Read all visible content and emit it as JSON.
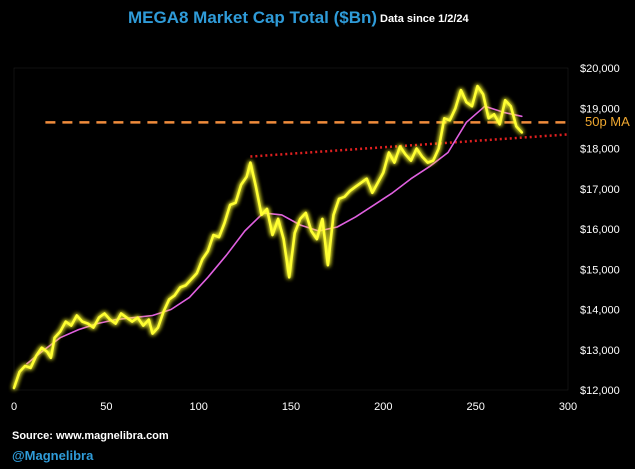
{
  "header": {
    "title": "MEGA8 Market Cap Total ($Bn)",
    "subtitle": "Data since 1/2/24"
  },
  "footer": {
    "source": "Source: www.magnelibra.com",
    "handle": "@Magnelibra"
  },
  "chart_data": {
    "type": "line",
    "title": "MEGA8 Market Cap Total ($Bn)",
    "subtitle": "Data since 1/2/24",
    "xlabel": "",
    "ylabel": "",
    "xlim": [
      0,
      300
    ],
    "ylim": [
      12000,
      20000
    ],
    "x_ticks": [
      0,
      50,
      100,
      150,
      200,
      250,
      300
    ],
    "x_tick_labels": [
      "0",
      "50",
      "100",
      "150",
      "200",
      "250",
      "300"
    ],
    "y_ticks": [
      12000,
      13000,
      14000,
      15000,
      16000,
      17000,
      18000,
      19000,
      20000
    ],
    "y_tick_labels": [
      "$12,000",
      "$13,000",
      "$14,000",
      "$15,000",
      "$16,000",
      "$17,000",
      "$18,000",
      "$19,000",
      "$20,000"
    ],
    "y_axis_position": "right",
    "grid": false,
    "background": "#000000",
    "series": [
      {
        "name": "",
        "color": "#ffff33",
        "glow": true,
        "x": [
          0,
          3,
          6,
          9,
          12,
          15,
          18,
          20,
          22,
          25,
          28,
          31,
          34,
          37,
          40,
          43,
          46,
          49,
          52,
          55,
          58,
          61,
          64,
          67,
          70,
          73,
          75,
          78,
          81,
          84,
          87,
          90,
          93,
          96,
          99,
          102,
          105,
          108,
          111,
          114,
          117,
          120,
          123,
          126,
          128,
          131,
          134,
          137,
          140,
          143,
          146,
          149,
          152,
          155,
          158,
          161,
          164,
          167,
          170,
          173,
          176,
          179,
          182,
          185,
          188,
          191,
          194,
          197,
          200,
          203,
          206,
          209,
          212,
          215,
          218,
          221,
          224,
          227,
          230,
          233,
          236,
          239,
          242,
          245,
          248,
          251,
          254,
          257,
          260,
          263,
          266,
          269,
          272,
          275
        ],
        "values": [
          12050,
          12450,
          12600,
          12550,
          12850,
          13050,
          12950,
          12800,
          13300,
          13450,
          13700,
          13600,
          13850,
          13700,
          13650,
          13550,
          13800,
          13900,
          13750,
          13650,
          13900,
          13800,
          13700,
          13800,
          13600,
          13750,
          13400,
          13550,
          13950,
          14250,
          14350,
          14550,
          14600,
          14750,
          14900,
          15250,
          15450,
          15850,
          15800,
          16150,
          16600,
          16650,
          17100,
          17300,
          17650,
          17050,
          16350,
          16500,
          15850,
          16250,
          15750,
          14800,
          15900,
          16250,
          16400,
          15950,
          15750,
          16250,
          15100,
          16350,
          16750,
          16800,
          16950,
          17050,
          17150,
          17250,
          16900,
          17150,
          17400,
          17900,
          17650,
          18050,
          17850,
          17700,
          18000,
          17800,
          17650,
          17700,
          18000,
          18750,
          18700,
          19000,
          19450,
          19150,
          19050,
          19550,
          19350,
          18750,
          18850,
          18600,
          19200,
          19050,
          18550,
          18400
        ]
      },
      {
        "name": "50p MA",
        "color": "#e060e0",
        "x": [
          7,
          15,
          25,
          35,
          45,
          55,
          65,
          75,
          85,
          95,
          105,
          115,
          125,
          135,
          145,
          155,
          165,
          175,
          185,
          195,
          205,
          215,
          225,
          235,
          245,
          255,
          265,
          275
        ],
        "values": [
          12650,
          12950,
          13300,
          13500,
          13650,
          13750,
          13800,
          13850,
          14000,
          14300,
          14800,
          15350,
          15950,
          16400,
          16350,
          16100,
          15950,
          16050,
          16300,
          16600,
          16900,
          17250,
          17550,
          17900,
          18650,
          19050,
          18900,
          18800
        ]
      }
    ],
    "reference_lines": [
      {
        "kind": "horizontal",
        "style": "dashed",
        "color": "#f08c3c",
        "y": 18650,
        "x_range": [
          17,
          300
        ],
        "label": "50p MA"
      },
      {
        "kind": "trend",
        "style": "dotted",
        "color": "#e02020",
        "points": [
          [
            128,
            17800
          ],
          [
            300,
            18350
          ]
        ]
      }
    ]
  }
}
